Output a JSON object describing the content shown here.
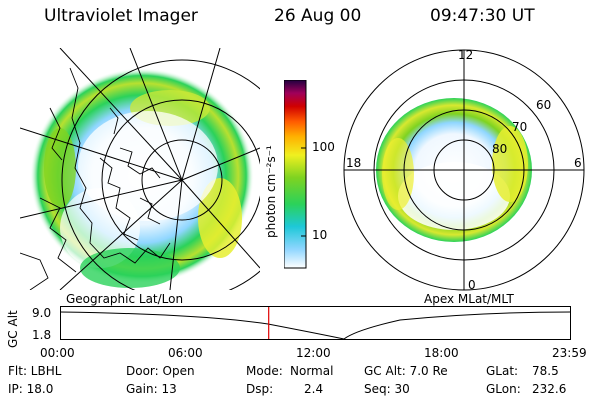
{
  "header": {
    "title": "Ultraviolet Imager",
    "date": "26 Aug 00",
    "time": "09:47:30 UT"
  },
  "left_panel": {
    "label": "Geographic Lat/Lon"
  },
  "right_panel": {
    "label": "Apex MLat/MLT",
    "mlt_labels": {
      "top": "12",
      "left": "18",
      "right": "6",
      "bottom": "0"
    },
    "lat_labels": [
      "60",
      "70",
      "80"
    ]
  },
  "colorbar": {
    "unit_label": "photon cm⁻²s⁻¹",
    "ticks": [
      "100",
      "10"
    ],
    "colors": [
      "#ffffff",
      "#8fd6ff",
      "#1ec8d8",
      "#2bd25a",
      "#7ed321",
      "#f0f020",
      "#ffb000",
      "#ff5a00",
      "#d00000",
      "#a0005a",
      "#200040"
    ]
  },
  "timeline": {
    "ylabel": "GC Alt",
    "y_ticks": [
      "9.0",
      "1.8"
    ],
    "x_ticks": [
      "00:00",
      "06:00",
      "12:00",
      "18:00",
      "23:59"
    ],
    "marker_fraction": 0.4085
  },
  "info": {
    "row1": {
      "flt": "Flt: LBHL",
      "door": "Door: Open",
      "mode_label": "Mode:",
      "mode_value": "Normal",
      "gcalt": "GC Alt: 7.0 Re",
      "glat_label": "GLat:",
      "glat_value": "78.5"
    },
    "row2": {
      "ip": "IP: 18.0",
      "gain": "Gain: 13",
      "dsp_label": "Dsp:",
      "dsp_value": "2.4",
      "seq": "Seq: 30",
      "glon_label": "GLon:",
      "glon_value": "232.6"
    }
  }
}
